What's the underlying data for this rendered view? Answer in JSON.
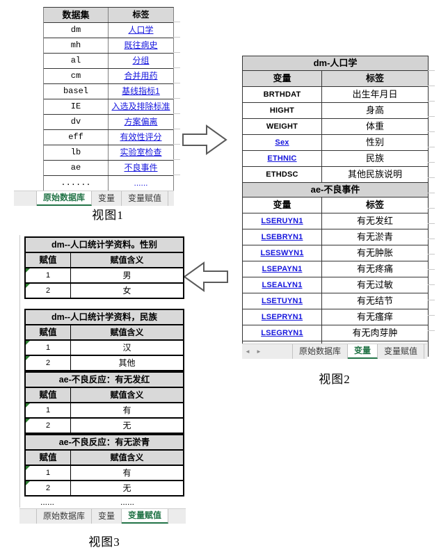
{
  "colors": {
    "accent_green": "#217346",
    "link_blue": "#1515dd",
    "header_gray": "#d9d9d9",
    "flag_green": "#2e7d32"
  },
  "view1": {
    "caption": "视图1",
    "columns": [
      "数据集",
      "标签"
    ],
    "rows": [
      {
        "dataset": "dm",
        "label": "人口学",
        "link": true
      },
      {
        "dataset": "mh",
        "label": "既往病史",
        "link": true
      },
      {
        "dataset": "al",
        "label": "分组",
        "link": true
      },
      {
        "dataset": "cm",
        "label": "合并用药",
        "link": true
      },
      {
        "dataset": "basel",
        "label": "基线指标1",
        "link": true
      },
      {
        "dataset": "IE",
        "label": "入选及排除标准",
        "link": true
      },
      {
        "dataset": "dv",
        "label": "方案偏离",
        "link": true
      },
      {
        "dataset": "eff",
        "label": "有效性评分",
        "link": true
      },
      {
        "dataset": "lb",
        "label": "实验室检查",
        "link": true
      },
      {
        "dataset": "ae",
        "label": "不良事件",
        "link": true
      },
      {
        "dataset": "......",
        "label": "......",
        "link": true,
        "dots": true
      }
    ],
    "tabs": [
      {
        "label": "原始数据库",
        "active": true
      },
      {
        "label": "变量",
        "active": false
      },
      {
        "label": "变量赋值",
        "active": false
      }
    ]
  },
  "view2": {
    "caption": "视图2",
    "columns": [
      "变量",
      "标签"
    ],
    "nav_prev": "◄",
    "nav_next": "►",
    "sections": [
      {
        "title": "dm-人口学",
        "header_bg": "#d9d9d9",
        "rows": [
          {
            "variable": "BRTHDAT",
            "label": "出生年月日",
            "link": false
          },
          {
            "variable": "HIGHT",
            "label": "身高",
            "link": false
          },
          {
            "variable": "WEIGHT",
            "label": "体重",
            "link": false
          },
          {
            "variable": "Sex",
            "label": "性别",
            "link": true
          },
          {
            "variable": "ETHNIC",
            "label": "民族",
            "link": true
          },
          {
            "variable": "ETHDSC",
            "label": "其他民族说明",
            "link": false
          }
        ]
      },
      {
        "title": "ae-不良事件",
        "header_bg": "#ffffff",
        "rows": [
          {
            "variable": "LSERUYN1",
            "label": "有无发红",
            "link": true
          },
          {
            "variable": "LSEBRYN1",
            "label": "有无淤青",
            "link": true
          },
          {
            "variable": "LSESWYN1",
            "label": "有无肿胀",
            "link": true
          },
          {
            "variable": "LSEPAYN1",
            "label": "有无疼痛",
            "link": true
          },
          {
            "variable": "LSEALYN1",
            "label": "有无过敏",
            "link": true
          },
          {
            "variable": "LSETUYN1",
            "label": "有无结节",
            "link": true
          },
          {
            "variable": "LSEPRYN1",
            "label": "有无瘙痒",
            "link": true
          },
          {
            "variable": "LSEGRYN1",
            "label": "有无肉芽肿",
            "link": true
          },
          {
            "variable": "......",
            "label": "......",
            "link": false,
            "dots": true
          }
        ]
      }
    ],
    "tabs": [
      {
        "label": "原始数据库",
        "active": false
      },
      {
        "label": "变量",
        "active": true
      },
      {
        "label": "变量赋值",
        "active": false
      }
    ]
  },
  "view3": {
    "caption": "视图3",
    "columns": [
      "赋值",
      "赋值含义"
    ],
    "blocks": [
      {
        "title": "dm--人口统计学资料。性别",
        "rows": [
          [
            "1",
            "男"
          ],
          [
            "2",
            "女"
          ]
        ],
        "gap_after": true
      },
      {
        "title": "dm--人口统计学资料，民族",
        "rows": [
          [
            "1",
            "汉"
          ],
          [
            "2",
            "其他"
          ]
        ],
        "gap_after": false
      },
      {
        "title": "ae-不良反应：有无发红",
        "rows": [
          [
            "1",
            "有"
          ],
          [
            "2",
            "无"
          ]
        ],
        "gap_after": false
      },
      {
        "title": "ae-不良反应：有无淤青",
        "rows": [
          [
            "1",
            "有"
          ],
          [
            "2",
            "无"
          ]
        ],
        "gap_after": false
      }
    ],
    "dots_row": [
      "......",
      "......"
    ],
    "tabs": [
      {
        "label": "原始数据库",
        "active": false
      },
      {
        "label": "变量",
        "active": false
      },
      {
        "label": "变量赋值",
        "active": true
      }
    ]
  }
}
